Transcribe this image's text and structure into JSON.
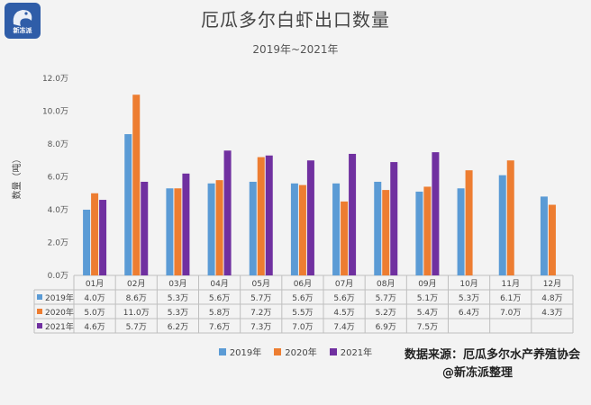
{
  "logo": {
    "text": "新冻派"
  },
  "chart_data": {
    "type": "bar",
    "title": "厄瓜多尔白虾出口数量",
    "subtitle": "2019年~2021年",
    "ylabel": "数量（吨）",
    "ylim": [
      0,
      12
    ],
    "yticks": [
      "0.0万",
      "2.0万",
      "4.0万",
      "6.0万",
      "8.0万",
      "10.0万",
      "12.0万"
    ],
    "categories": [
      "01月",
      "02月",
      "03月",
      "04月",
      "05月",
      "06月",
      "07月",
      "08月",
      "09月",
      "10月",
      "11月",
      "12月"
    ],
    "series": [
      {
        "name": "2019年",
        "color": "#5b9bd5",
        "values": [
          4.0,
          8.6,
          5.3,
          5.6,
          5.7,
          5.6,
          5.6,
          5.7,
          5.1,
          5.3,
          6.1,
          4.8
        ],
        "labels": [
          "4.0万",
          "8.6万",
          "5.3万",
          "5.6万",
          "5.7万",
          "5.6万",
          "5.6万",
          "5.7万",
          "5.1万",
          "5.3万",
          "6.1万",
          "4.8万"
        ]
      },
      {
        "name": "2020年",
        "color": "#ed7d31",
        "values": [
          5.0,
          11.0,
          5.3,
          5.8,
          7.2,
          5.5,
          4.5,
          5.2,
          5.4,
          6.4,
          7.0,
          4.3
        ],
        "labels": [
          "5.0万",
          "11.0万",
          "5.3万",
          "5.8万",
          "7.2万",
          "5.5万",
          "4.5万",
          "5.2万",
          "5.4万",
          "6.4万",
          "7.0万",
          "4.3万"
        ]
      },
      {
        "name": "2021年",
        "color": "#7030a0",
        "values": [
          4.6,
          5.7,
          6.2,
          7.6,
          7.3,
          7.0,
          7.4,
          6.9,
          7.5,
          null,
          null,
          null
        ],
        "labels": [
          "4.6万",
          "5.7万",
          "6.2万",
          "7.6万",
          "7.3万",
          "7.0万",
          "7.4万",
          "6.9万",
          "7.5万",
          "",
          "",
          ""
        ]
      }
    ],
    "grid": false,
    "legend": "bottom-center"
  },
  "source": {
    "line1": "数据来源：厄瓜多尔水产养殖协会",
    "line2": "@新冻派整理"
  }
}
